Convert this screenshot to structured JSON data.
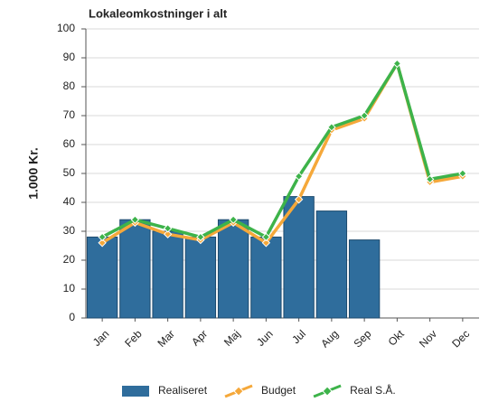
{
  "chart_data": {
    "type": "bar",
    "title": "Lokaleomkostninger i alt",
    "y_label": "1.000 Kr.",
    "categories": [
      "Jan",
      "Feb",
      "Mar",
      "Apr",
      "Maj",
      "Jun",
      "Jul",
      "Aug",
      "Sep",
      "Okt",
      "Nov",
      "Dec"
    ],
    "series": [
      {
        "name": "Realiseret",
        "type": "bar",
        "color": "#2f6d9c",
        "values": [
          28,
          34,
          30,
          28,
          34,
          28,
          42,
          37,
          27,
          null,
          null,
          null
        ]
      },
      {
        "name": "Budget",
        "type": "line",
        "color": "#f5a83a",
        "values": [
          26,
          33,
          29,
          27,
          33,
          26,
          41,
          65,
          69,
          88,
          47,
          49
        ]
      },
      {
        "name": "Real S.Å.",
        "type": "line",
        "color": "#3db34a",
        "values": [
          28,
          34,
          31,
          28,
          34,
          28,
          49,
          66,
          70,
          88,
          48,
          50
        ]
      }
    ],
    "ylim": [
      0,
      100
    ],
    "yticks": [
      0,
      10,
      20,
      30,
      40,
      50,
      60,
      70,
      80,
      90,
      100
    ],
    "grid": true
  }
}
